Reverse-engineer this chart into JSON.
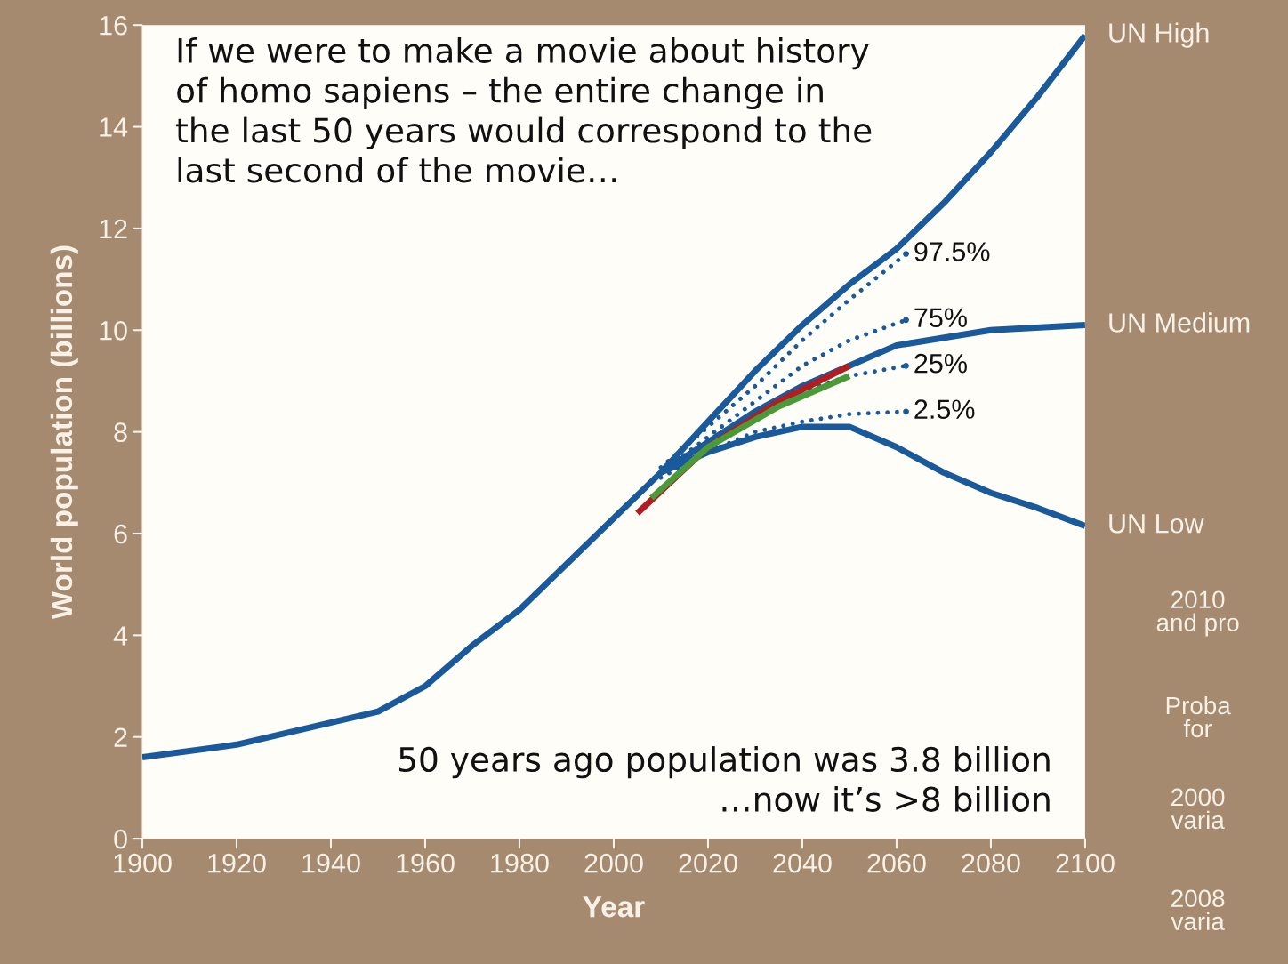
{
  "chart_data": {
    "type": "line",
    "xlabel": "Year",
    "ylabel": "World population (billions)",
    "xlim": [
      1900,
      2100
    ],
    "xticks": [
      1900,
      1920,
      1940,
      1960,
      1980,
      2000,
      2020,
      2040,
      2060,
      2080,
      2100
    ],
    "ylim": [
      0,
      16
    ],
    "yticks": [
      0,
      2,
      4,
      6,
      8,
      10,
      12,
      14,
      16
    ],
    "grid": false,
    "legend": false,
    "marker": "none",
    "series": [
      {
        "name": "UN High",
        "color": "#1a5a9a",
        "line_style": "solid",
        "x": [
          2010,
          2020,
          2030,
          2040,
          2050,
          2060,
          2070,
          2080,
          2090,
          2100
        ],
        "values": [
          7.2,
          8.2,
          9.2,
          10.1,
          10.9,
          11.6,
          12.5,
          13.5,
          14.6,
          15.8
        ]
      },
      {
        "name": "UN Medium",
        "color": "#1a5a9a",
        "line_style": "solid",
        "x": [
          1900,
          1920,
          1950,
          1960,
          1970,
          1980,
          1990,
          2000,
          2010,
          2020,
          2030,
          2040,
          2050,
          2060,
          2080,
          2100
        ],
        "values": [
          1.6,
          1.85,
          2.5,
          3.0,
          3.8,
          4.5,
          5.4,
          6.3,
          7.2,
          7.8,
          8.4,
          8.9,
          9.3,
          9.7,
          10.0,
          10.1
        ]
      },
      {
        "name": "UN Low",
        "color": "#1a5a9a",
        "line_style": "solid",
        "x": [
          2010,
          2020,
          2030,
          2040,
          2050,
          2060,
          2070,
          2080,
          2090,
          2100
        ],
        "values": [
          7.2,
          7.6,
          7.9,
          8.1,
          8.1,
          7.7,
          7.2,
          6.8,
          6.5,
          6.15
        ]
      },
      {
        "name": "97.5%",
        "color": "#1a5a9a",
        "line_style": "dotted",
        "x": [
          2010,
          2020,
          2030,
          2040,
          2050,
          2062
        ],
        "values": [
          7.3,
          8.1,
          8.9,
          9.8,
          10.6,
          11.5
        ]
      },
      {
        "name": "75%",
        "color": "#1a5a9a",
        "line_style": "dotted",
        "x": [
          2010,
          2020,
          2030,
          2040,
          2050,
          2062
        ],
        "values": [
          7.2,
          7.9,
          8.6,
          9.3,
          9.8,
          10.2
        ]
      },
      {
        "name": "25%",
        "color": "#1a5a9a",
        "line_style": "dotted",
        "x": [
          2010,
          2020,
          2030,
          2040,
          2050,
          2062
        ],
        "values": [
          7.2,
          7.8,
          8.4,
          8.8,
          9.1,
          9.3
        ]
      },
      {
        "name": "2.5%",
        "color": "#1a5a9a",
        "line_style": "dotted",
        "x": [
          2010,
          2020,
          2030,
          2040,
          2050,
          2062
        ],
        "values": [
          7.1,
          7.6,
          8.0,
          8.2,
          8.35,
          8.4
        ]
      },
      {
        "color": "#b01e23",
        "line_style": "solid",
        "x": [
          2005,
          2020,
          2035,
          2050
        ],
        "values": [
          6.4,
          7.7,
          8.6,
          9.3
        ]
      },
      {
        "color": "#4a9a3a",
        "line_style": "solid",
        "x": [
          2008,
          2020,
          2035,
          2050
        ],
        "values": [
          6.7,
          7.7,
          8.5,
          9.1
        ]
      }
    ],
    "annotations": [
      "If we were to make a movie about history\nof homo sapiens – the entire change in\nthe last 50 years would correspond to the\nlast second of the movie…",
      "50 years ago population was 3.8 billion\n…now it’s >8 billion",
      "2010\nand pro",
      "Proba\nfor",
      "2000\nvaria",
      "2008\nvaria"
    ]
  }
}
